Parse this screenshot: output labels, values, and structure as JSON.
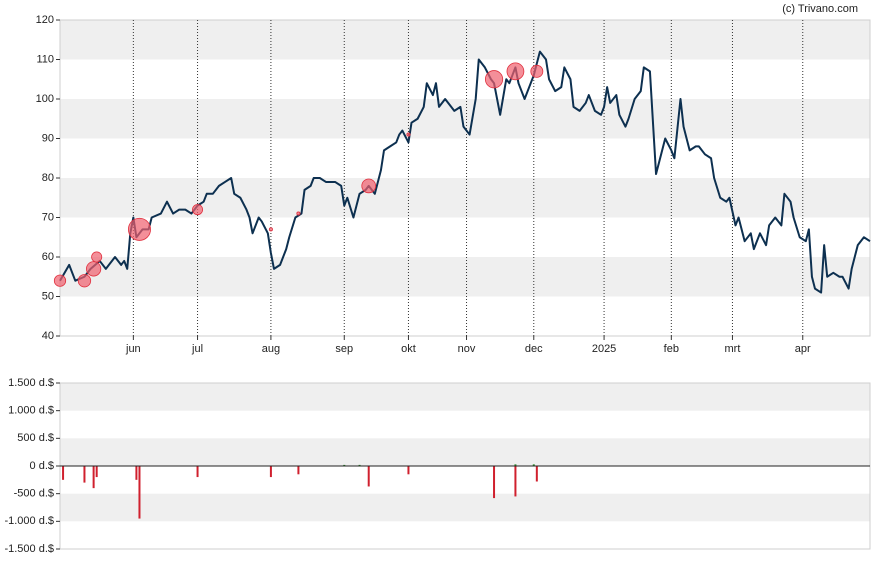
{
  "credit": "(c) Trivano.com",
  "chart_data": [
    {
      "type": "line",
      "xlim": [
        0,
        265
      ],
      "xticks": [
        {
          "value": 24,
          "label": "jun"
        },
        {
          "value": 45,
          "label": "jul"
        },
        {
          "value": 69,
          "label": "aug"
        },
        {
          "value": 93,
          "label": "sep"
        },
        {
          "value": 114,
          "label": "okt"
        },
        {
          "value": 133,
          "label": "nov"
        },
        {
          "value": 155,
          "label": "dec"
        },
        {
          "value": 178,
          "label": "2025"
        },
        {
          "value": 200,
          "label": "feb"
        },
        {
          "value": 220,
          "label": "mrt"
        },
        {
          "value": 243,
          "label": "apr"
        }
      ],
      "ylim": [
        40,
        120
      ],
      "yticks": [
        40,
        50,
        60,
        70,
        80,
        90,
        100,
        110,
        120
      ],
      "grid": true,
      "color": "#0d3050",
      "x": [
        0,
        3,
        5,
        8,
        10,
        13,
        15,
        16,
        18,
        20,
        21,
        22,
        23,
        24,
        25,
        27,
        29,
        30,
        33,
        35,
        37,
        39,
        41,
        43,
        45,
        47,
        48,
        50,
        52,
        54,
        56,
        57,
        59,
        61,
        62,
        63,
        65,
        66,
        68,
        69,
        70,
        72,
        74,
        75,
        77,
        79,
        80,
        82,
        83,
        85,
        87,
        88,
        90,
        92,
        93,
        94,
        96,
        97,
        98,
        100,
        101,
        103,
        105,
        106,
        108,
        110,
        111,
        112,
        114,
        115,
        117,
        119,
        120,
        122,
        123,
        124,
        126,
        128,
        129,
        131,
        132,
        134,
        136,
        137,
        139,
        141,
        142,
        144,
        146,
        147,
        149,
        150,
        152,
        154,
        155,
        157,
        159,
        160,
        162,
        164,
        165,
        167,
        168,
        170,
        172,
        173,
        175,
        177,
        178,
        179,
        180,
        182,
        183,
        185,
        186,
        188,
        190,
        191,
        193,
        195,
        196,
        198,
        200,
        201,
        203,
        204,
        206,
        208,
        209,
        211,
        213,
        214,
        216,
        218,
        219,
        221,
        222,
        224,
        226,
        227,
        229,
        231,
        232,
        234,
        236,
        237,
        239,
        240,
        242,
        244,
        245,
        246,
        247,
        249,
        250,
        251,
        253,
        255,
        256,
        258,
        259,
        261,
        263,
        265
      ],
      "values": [
        54,
        58,
        54,
        55,
        57,
        59,
        57,
        58,
        60,
        58,
        59,
        57,
        66,
        70,
        65,
        67,
        67,
        70,
        71,
        74,
        71,
        72,
        72,
        71,
        73,
        74,
        76,
        76,
        78,
        79,
        80,
        76,
        75,
        72,
        70,
        66,
        70,
        69,
        66,
        61,
        57,
        58,
        62,
        65,
        70,
        71,
        77,
        78,
        80,
        80,
        79,
        79,
        79,
        78,
        73,
        75,
        70,
        73,
        76,
        77,
        78,
        76,
        82,
        87,
        88,
        89,
        91,
        92,
        89,
        94,
        95,
        98,
        104,
        101,
        104,
        98,
        100,
        98,
        97,
        98,
        93,
        91,
        100,
        110,
        108,
        105,
        104,
        96,
        105,
        104,
        108,
        104,
        100,
        104,
        106,
        112,
        110,
        105,
        102,
        103,
        108,
        105,
        98,
        97,
        99,
        101,
        97,
        96,
        98,
        103,
        99,
        101,
        96,
        93,
        95,
        100,
        102,
        108,
        107,
        81,
        84,
        90,
        87,
        85,
        100,
        93,
        87,
        88,
        88,
        86,
        85,
        80,
        75,
        74,
        75,
        68,
        70,
        64,
        66,
        62,
        66,
        63,
        68,
        70,
        68,
        76,
        74,
        70,
        65,
        64,
        67,
        55,
        52,
        51,
        63,
        55,
        56,
        55,
        55,
        52,
        57,
        63,
        65,
        64
      ],
      "markers": {
        "x": [
          0,
          8,
          11,
          12,
          26,
          45,
          69,
          78,
          101,
          114,
          142,
          149,
          156
        ],
        "values": [
          54,
          54,
          57,
          60,
          67,
          72,
          67,
          71,
          78,
          91,
          105,
          107,
          107
        ],
        "sizes": [
          250,
          300,
          400,
          200,
          950,
          200,
          20,
          20,
          370,
          20,
          580,
          550,
          280
        ],
        "color": "#f0606e"
      }
    },
    {
      "type": "bar",
      "xlim": [
        0,
        265
      ],
      "ylim": [
        -1500,
        1500
      ],
      "yticks": [
        {
          "value": -1500,
          "label": "-1.500 d.$"
        },
        {
          "value": -1000,
          "label": "-1.000 d.$"
        },
        {
          "value": -500,
          "label": "-500 d.$"
        },
        {
          "value": 0,
          "label": "0 d.$"
        },
        {
          "value": 500,
          "label": "500 d.$"
        },
        {
          "value": 1000,
          "label": "1.000 d.$"
        },
        {
          "value": 1500,
          "label": "1.500 d.$"
        }
      ],
      "grid": true,
      "negative_color": "#d0202e",
      "positive_color": "#2a8a2a",
      "x": [
        1,
        8,
        11,
        12,
        25,
        26,
        45,
        69,
        78,
        93,
        98,
        101,
        114,
        142,
        149,
        149,
        155,
        156
      ],
      "values": [
        -250,
        -300,
        -400,
        -200,
        -250,
        -950,
        -200,
        -200,
        -150,
        20,
        20,
        -370,
        -150,
        -580,
        -550,
        30,
        30,
        -280
      ]
    }
  ]
}
